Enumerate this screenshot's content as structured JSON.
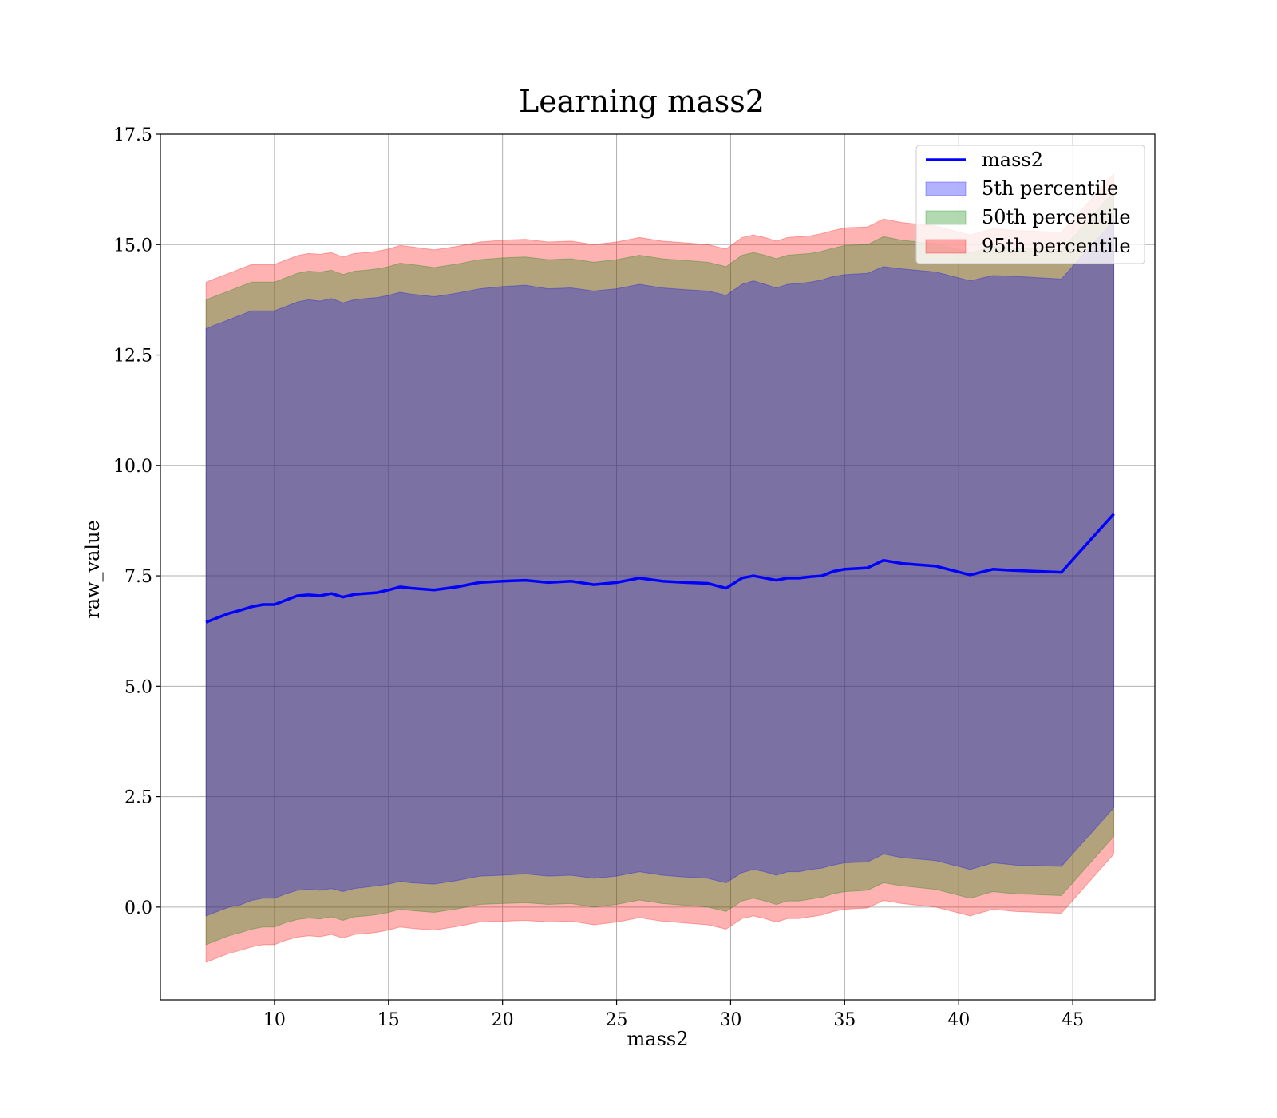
{
  "chart_data": {
    "type": "line",
    "title": "Learning mass2",
    "xlabel": "mass2",
    "ylabel": "raw_value",
    "xlim": [
      5.0,
      48.6
    ],
    "ylim": [
      -2.1,
      17.5
    ],
    "xticks": [
      10,
      15,
      20,
      25,
      30,
      35,
      40,
      45
    ],
    "yticks": [
      0.0,
      2.5,
      5.0,
      7.5,
      10.0,
      12.5,
      15.0,
      17.5
    ],
    "xtick_labels": [
      "10",
      "15",
      "20",
      "25",
      "30",
      "35",
      "40",
      "45"
    ],
    "ytick_labels": [
      "0.0",
      "2.5",
      "5.0",
      "7.5",
      "10.0",
      "12.5",
      "15.0",
      "17.5"
    ],
    "grid": true,
    "legend_position": "top-right",
    "legend": [
      "mass2",
      "5th percentile",
      "50th percentile",
      "95th percentile"
    ],
    "colors": {
      "line": "#0000ff",
      "band_5": "#0000ff",
      "band_50": "#008000",
      "band_95": "#ff0000"
    },
    "x": [
      7.0,
      7.5,
      8.0,
      8.5,
      9.0,
      9.5,
      10.0,
      10.5,
      11.0,
      11.5,
      12.0,
      12.5,
      13.0,
      13.5,
      14.0,
      14.5,
      15.0,
      15.5,
      16.0,
      17.0,
      18.0,
      19.0,
      20.0,
      21.0,
      22.0,
      23.0,
      24.0,
      25.0,
      26.0,
      27.0,
      28.0,
      29.0,
      29.8,
      30.5,
      31.0,
      31.5,
      32.0,
      32.5,
      33.0,
      33.5,
      34.0,
      34.5,
      35.0,
      36.0,
      36.7,
      37.5,
      39.0,
      40.5,
      41.5,
      42.5,
      44.5,
      46.8
    ],
    "series": [
      {
        "name": "mass2",
        "values": [
          6.45,
          6.55,
          6.65,
          6.72,
          6.8,
          6.85,
          6.85,
          6.95,
          7.05,
          7.07,
          7.05,
          7.1,
          7.02,
          7.08,
          7.1,
          7.12,
          7.18,
          7.25,
          7.22,
          7.18,
          7.25,
          7.35,
          7.38,
          7.4,
          7.35,
          7.38,
          7.3,
          7.35,
          7.45,
          7.38,
          7.35,
          7.33,
          7.22,
          7.45,
          7.5,
          7.45,
          7.4,
          7.45,
          7.45,
          7.48,
          7.5,
          7.6,
          7.65,
          7.68,
          7.85,
          7.78,
          7.72,
          7.52,
          7.65,
          7.62,
          7.58,
          8.9
        ]
      },
      {
        "name": "5th percentile",
        "lower": [
          -0.2,
          -0.1,
          0.0,
          0.05,
          0.15,
          0.2,
          0.2,
          0.3,
          0.38,
          0.4,
          0.38,
          0.42,
          0.35,
          0.42,
          0.45,
          0.48,
          0.52,
          0.58,
          0.55,
          0.52,
          0.6,
          0.7,
          0.72,
          0.75,
          0.7,
          0.72,
          0.65,
          0.7,
          0.8,
          0.72,
          0.68,
          0.65,
          0.55,
          0.78,
          0.85,
          0.8,
          0.72,
          0.8,
          0.8,
          0.85,
          0.88,
          0.95,
          1.0,
          1.02,
          1.2,
          1.12,
          1.05,
          0.85,
          1.0,
          0.95,
          0.92,
          2.25
        ],
        "upper": [
          13.1,
          13.2,
          13.3,
          13.4,
          13.5,
          13.5,
          13.5,
          13.6,
          13.7,
          13.75,
          13.72,
          13.78,
          13.68,
          13.75,
          13.78,
          13.8,
          13.85,
          13.92,
          13.88,
          13.82,
          13.9,
          14.0,
          14.05,
          14.08,
          14.0,
          14.02,
          13.95,
          14.0,
          14.1,
          14.02,
          13.98,
          13.95,
          13.85,
          14.1,
          14.18,
          14.1,
          14.02,
          14.1,
          14.12,
          14.15,
          14.2,
          14.28,
          14.32,
          14.35,
          14.5,
          14.45,
          14.38,
          14.18,
          14.3,
          14.28,
          14.22,
          15.55
        ]
      },
      {
        "name": "50th percentile",
        "lower": [
          -0.85,
          -0.75,
          -0.65,
          -0.58,
          -0.5,
          -0.45,
          -0.45,
          -0.35,
          -0.28,
          -0.25,
          -0.27,
          -0.22,
          -0.3,
          -0.22,
          -0.2,
          -0.17,
          -0.12,
          -0.05,
          -0.08,
          -0.12,
          -0.04,
          0.06,
          0.08,
          0.1,
          0.06,
          0.08,
          0.0,
          0.06,
          0.16,
          0.08,
          0.04,
          0.0,
          -0.1,
          0.14,
          0.2,
          0.14,
          0.06,
          0.14,
          0.14,
          0.18,
          0.22,
          0.3,
          0.35,
          0.38,
          0.55,
          0.48,
          0.4,
          0.2,
          0.35,
          0.3,
          0.26,
          1.6
        ],
        "upper": [
          13.75,
          13.85,
          13.95,
          14.05,
          14.15,
          14.15,
          14.15,
          14.25,
          14.35,
          14.4,
          14.38,
          14.42,
          14.32,
          14.4,
          14.42,
          14.45,
          14.5,
          14.58,
          14.55,
          14.48,
          14.56,
          14.66,
          14.7,
          14.72,
          14.66,
          14.68,
          14.6,
          14.66,
          14.76,
          14.68,
          14.64,
          14.6,
          14.5,
          14.76,
          14.82,
          14.76,
          14.68,
          14.76,
          14.78,
          14.8,
          14.85,
          14.92,
          14.98,
          15.0,
          15.18,
          15.1,
          15.02,
          14.82,
          14.96,
          14.92,
          14.88,
          16.2
        ]
      },
      {
        "name": "95th percentile",
        "lower": [
          -1.25,
          -1.15,
          -1.05,
          -0.98,
          -0.9,
          -0.85,
          -0.85,
          -0.75,
          -0.68,
          -0.65,
          -0.67,
          -0.62,
          -0.7,
          -0.62,
          -0.6,
          -0.57,
          -0.52,
          -0.45,
          -0.48,
          -0.52,
          -0.44,
          -0.34,
          -0.32,
          -0.3,
          -0.34,
          -0.32,
          -0.4,
          -0.34,
          -0.24,
          -0.32,
          -0.36,
          -0.4,
          -0.5,
          -0.26,
          -0.2,
          -0.26,
          -0.34,
          -0.26,
          -0.26,
          -0.22,
          -0.18,
          -0.1,
          -0.05,
          -0.02,
          0.15,
          0.08,
          0.0,
          -0.2,
          -0.05,
          -0.1,
          -0.14,
          1.2
        ],
        "upper": [
          14.15,
          14.25,
          14.35,
          14.45,
          14.55,
          14.55,
          14.55,
          14.65,
          14.75,
          14.8,
          14.78,
          14.82,
          14.72,
          14.8,
          14.82,
          14.85,
          14.9,
          14.98,
          14.95,
          14.88,
          14.96,
          15.06,
          15.1,
          15.12,
          15.06,
          15.08,
          15.0,
          15.06,
          15.16,
          15.08,
          15.04,
          15.0,
          14.9,
          15.16,
          15.22,
          15.16,
          15.08,
          15.16,
          15.18,
          15.2,
          15.25,
          15.32,
          15.38,
          15.4,
          15.58,
          15.5,
          15.42,
          15.22,
          15.36,
          15.32,
          15.28,
          16.6
        ]
      }
    ]
  }
}
